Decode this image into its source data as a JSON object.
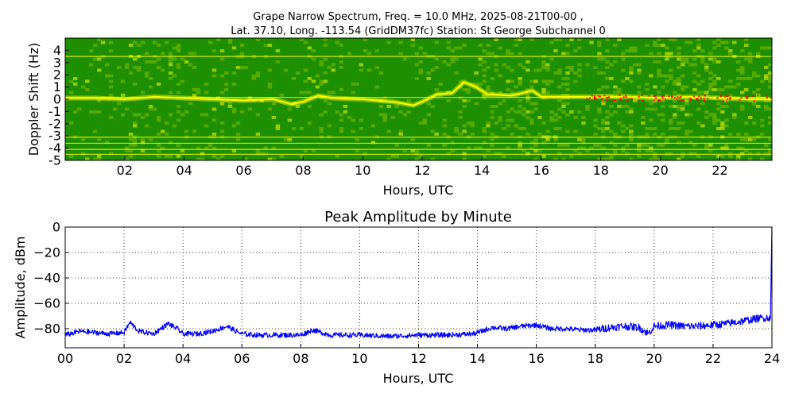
{
  "chart_data": [
    {
      "type": "heatmap",
      "title_line1": "Grape Narrow Spectrum, Freq. = 10.0 MHz, 2025-08-21T00-00 ,",
      "title_line2": "Lat.  37.10, Long. -113.54 (GridDM37fc) Station: St George Subchannel 0",
      "xlabel": "Hours, UTC",
      "ylabel": "Doppler Shift (Hz)",
      "xlim": [
        0,
        23.75
      ],
      "ylim": [
        -5,
        5
      ],
      "x_ticks": [
        2,
        4,
        6,
        8,
        10,
        12,
        14,
        16,
        18,
        20,
        22
      ],
      "x_tick_labels": [
        "02",
        "04",
        "06",
        "08",
        "10",
        "12",
        "14",
        "16",
        "18",
        "20",
        "22"
      ],
      "y_ticks": [
        4,
        3,
        2,
        1,
        0,
        -1,
        -2,
        -3,
        -4,
        -5
      ],
      "y_tick_labels": [
        "4",
        "3",
        "2",
        "1",
        "0",
        "-1",
        "-2",
        "-3",
        "-4",
        "-5"
      ],
      "colormap": [
        "#1e8f00",
        "#7fbf00",
        "#ffff00",
        "#ff0000"
      ],
      "background_color": "#1e8f00",
      "constant_lines_hz": [
        3.5,
        0.15,
        -3.1,
        -3.6,
        -4.1,
        -4.5
      ],
      "main_trace": [
        {
          "hour": 0.0,
          "hz": 0.1
        },
        {
          "hour": 1.0,
          "hz": 0.1
        },
        {
          "hour": 2.0,
          "hz": 0.0
        },
        {
          "hour": 3.0,
          "hz": 0.2
        },
        {
          "hour": 4.0,
          "hz": 0.1
        },
        {
          "hour": 5.0,
          "hz": 0.0
        },
        {
          "hour": 6.0,
          "hz": -0.1
        },
        {
          "hour": 7.0,
          "hz": 0.0
        },
        {
          "hour": 7.6,
          "hz": -0.4
        },
        {
          "hour": 8.0,
          "hz": -0.2
        },
        {
          "hour": 8.5,
          "hz": 0.3
        },
        {
          "hour": 9.0,
          "hz": 0.1
        },
        {
          "hour": 10.0,
          "hz": 0.0
        },
        {
          "hour": 11.0,
          "hz": -0.2
        },
        {
          "hour": 11.7,
          "hz": -0.5
        },
        {
          "hour": 12.0,
          "hz": -0.2
        },
        {
          "hour": 12.5,
          "hz": 0.4
        },
        {
          "hour": 13.0,
          "hz": 0.5
        },
        {
          "hour": 13.4,
          "hz": 1.4
        },
        {
          "hour": 13.8,
          "hz": 1.0
        },
        {
          "hour": 14.2,
          "hz": 0.4
        },
        {
          "hour": 15.0,
          "hz": 0.3
        },
        {
          "hour": 15.7,
          "hz": 0.7
        },
        {
          "hour": 16.0,
          "hz": 0.2
        },
        {
          "hour": 17.0,
          "hz": 0.2
        },
        {
          "hour": 18.0,
          "hz": 0.2
        },
        {
          "hour": 19.0,
          "hz": 0.2
        },
        {
          "hour": 20.0,
          "hz": 0.1
        },
        {
          "hour": 21.0,
          "hz": 0.2
        },
        {
          "hour": 22.0,
          "hz": 0.1
        },
        {
          "hour": 23.0,
          "hz": 0.0
        },
        {
          "hour": 23.75,
          "hz": 0.0
        }
      ],
      "brightness_by_hour": [
        0.35,
        0.35,
        0.45,
        0.5,
        0.4,
        0.45,
        0.3,
        0.35,
        0.45,
        0.35,
        0.3,
        0.3,
        0.35,
        0.45,
        0.65,
        0.65,
        0.7,
        0.7,
        0.75,
        0.8,
        0.85,
        0.85,
        0.9,
        0.95
      ]
    },
    {
      "type": "line",
      "title": "Peak Amplitude by Minute",
      "xlabel": "Hours, UTC",
      "ylabel": "Amplitude, dBm",
      "xlim": [
        0,
        24
      ],
      "ylim": [
        -95,
        0
      ],
      "x_ticks": [
        0,
        2,
        4,
        6,
        8,
        10,
        12,
        14,
        16,
        18,
        20,
        22,
        24
      ],
      "x_tick_labels": [
        "00",
        "02",
        "04",
        "06",
        "08",
        "10",
        "12",
        "14",
        "16",
        "18",
        "20",
        "22",
        "24"
      ],
      "y_ticks": [
        0,
        -20,
        -40,
        -60,
        -80
      ],
      "y_tick_labels": [
        "0",
        "−20",
        "−40",
        "−60",
        "−80"
      ],
      "grid": true,
      "color": "#0000ff",
      "series": [
        {
          "hours": [
            0.0,
            0.5,
            1.0,
            1.5,
            2.0,
            2.2,
            2.5,
            3.0,
            3.5,
            3.8,
            4.0,
            4.5,
            5.0,
            5.5,
            5.8,
            6.0,
            6.5,
            7.0,
            7.5,
            8.0,
            8.4,
            9.0,
            10.0,
            11.0,
            12.0,
            13.0,
            13.9,
            14.5,
            15.0,
            15.5,
            16.0,
            16.5,
            17.0,
            17.5,
            18.0,
            18.5,
            19.0,
            19.5,
            19.8,
            20.0,
            20.5,
            21.0,
            21.5,
            22.0,
            22.5,
            23.0,
            23.5,
            23.95,
            24.0
          ],
          "dbm": [
            -85,
            -82,
            -83,
            -84,
            -83,
            -75,
            -82,
            -84,
            -76,
            -80,
            -84,
            -84,
            -82,
            -78,
            -82,
            -84,
            -85,
            -85,
            -85,
            -85,
            -81,
            -85,
            -85,
            -86,
            -85,
            -85,
            -84,
            -79,
            -80,
            -78,
            -77,
            -80,
            -80,
            -81,
            -81,
            -79,
            -78,
            -79,
            -84,
            -78,
            -77,
            -78,
            -78,
            -77,
            -76,
            -74,
            -72,
            -71,
            0
          ]
        }
      ]
    }
  ]
}
